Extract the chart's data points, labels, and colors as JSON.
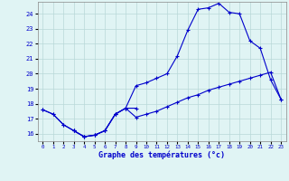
{
  "xlabel": "Graphe des températures (°c)",
  "background_color": "#e0f4f4",
  "grid_color": "#b8d8d8",
  "line_color": "#0000cc",
  "ylim": [
    15.5,
    24.8
  ],
  "xlim": [
    -0.5,
    23.5
  ],
  "yticks": [
    16,
    17,
    18,
    19,
    20,
    21,
    22,
    23,
    24
  ],
  "xticks": [
    0,
    1,
    2,
    3,
    4,
    5,
    6,
    7,
    8,
    9,
    10,
    11,
    12,
    13,
    14,
    15,
    16,
    17,
    18,
    19,
    20,
    21,
    22,
    23
  ],
  "line1_x": [
    0,
    1,
    2,
    3,
    4,
    5,
    6,
    7,
    8,
    9,
    10,
    11,
    12,
    13,
    14,
    15,
    16,
    17,
    18,
    19,
    20,
    21,
    22,
    23
  ],
  "line1_y": [
    17.6,
    17.3,
    16.6,
    16.2,
    15.8,
    15.9,
    16.2,
    17.3,
    17.7,
    19.2,
    19.4,
    19.7,
    20.0,
    21.2,
    22.9,
    24.3,
    24.4,
    24.7,
    24.1,
    24.0,
    22.2,
    21.7,
    19.6,
    18.3
  ],
  "line2_x": [
    0,
    1,
    2,
    3,
    4,
    5,
    6,
    7,
    8,
    9,
    10,
    11,
    12,
    13,
    14,
    15,
    16,
    17,
    18,
    19,
    20,
    21,
    22,
    23
  ],
  "line2_y": [
    17.6,
    17.3,
    16.6,
    16.2,
    15.8,
    15.9,
    16.2,
    17.3,
    17.7,
    17.1,
    17.3,
    17.5,
    17.8,
    18.1,
    18.4,
    18.6,
    18.9,
    19.1,
    19.3,
    19.5,
    19.7,
    19.9,
    20.1,
    18.3
  ],
  "line3_x": [
    3,
    4,
    5,
    6,
    7,
    8,
    9
  ],
  "line3_y": [
    16.2,
    15.8,
    15.9,
    16.2,
    17.3,
    17.7,
    17.7
  ]
}
